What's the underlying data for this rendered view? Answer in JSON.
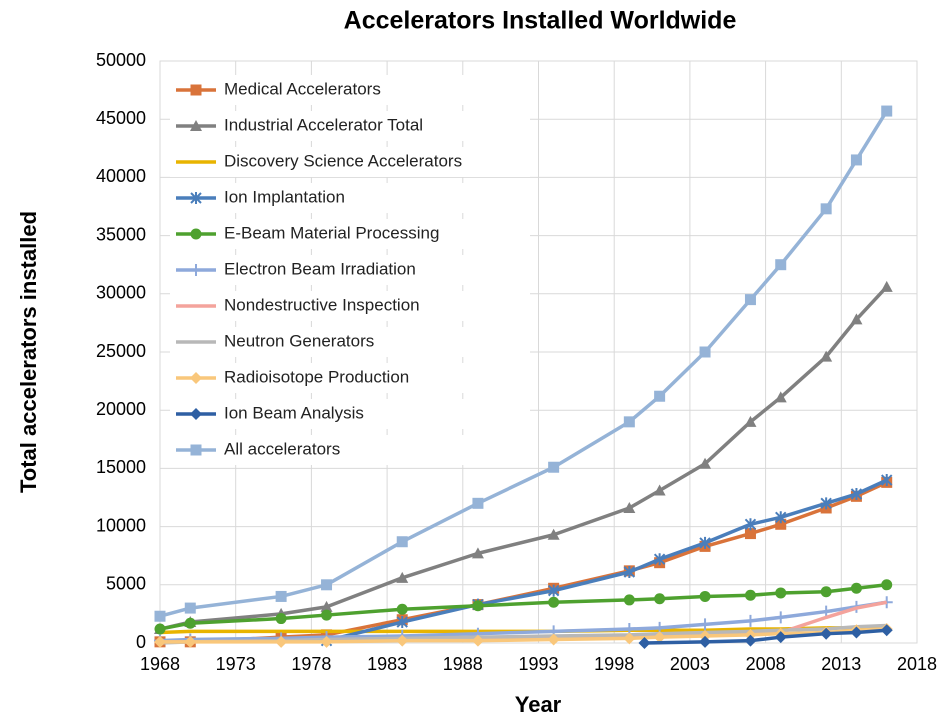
{
  "chart_data": {
    "type": "line",
    "title": "Accelerators Installed Worldwide",
    "xlabel": "Year",
    "ylabel": "Total accelerators installed",
    "xlim": [
      1968,
      2018
    ],
    "xticks": [
      1968,
      1973,
      1978,
      1983,
      1988,
      1993,
      1998,
      2003,
      2008,
      2013,
      2018
    ],
    "ylim": [
      0,
      50000
    ],
    "yticks": [
      0,
      5000,
      10000,
      15000,
      20000,
      25000,
      30000,
      35000,
      40000,
      45000,
      50000
    ],
    "grid": true,
    "legend": "upper left",
    "series": [
      {
        "name": "Medical Accelerators",
        "color": "#d9733a",
        "marker": "square",
        "x": [
          1968,
          1970,
          1976,
          1979,
          1984,
          1989,
          1994,
          1999,
          2001,
          2004,
          2007,
          2009,
          2012,
          2014,
          2016
        ],
        "values": [
          100,
          100,
          500,
          700,
          2000,
          3300,
          4700,
          6200,
          6900,
          8300,
          9400,
          10200,
          11600,
          12600,
          13800
        ]
      },
      {
        "name": "Industrial Accelerator Total",
        "color": "#808080",
        "marker": "triangle",
        "x": [
          1968,
          1970,
          1976,
          1979,
          1984,
          1989,
          1994,
          1999,
          2001,
          2004,
          2007,
          2009,
          2012,
          2014,
          2016
        ],
        "values": [
          1200,
          1800,
          2500,
          3100,
          5600,
          7700,
          9300,
          11600,
          13100,
          15400,
          19000,
          21100,
          24600,
          27800,
          30600
        ]
      },
      {
        "name": "Discovery Science Accelerators",
        "color": "#e8b400",
        "marker": "none",
        "x": [
          1968,
          1970,
          1976,
          1979,
          1984,
          1989,
          1994,
          1999,
          2001,
          2004,
          2007,
          2009,
          2012,
          2014,
          2016
        ],
        "values": [
          900,
          1000,
          1000,
          1000,
          1000,
          1000,
          1000,
          1100,
          1100,
          1100,
          1200,
          1200,
          1300,
          1300,
          1400
        ]
      },
      {
        "name": "Ion Implantation",
        "color": "#4a7ebb",
        "marker": "star",
        "x": [
          1979,
          1984,
          1989,
          1994,
          1999,
          2001,
          2004,
          2007,
          2009,
          2012,
          2014,
          2016
        ],
        "values": [
          200,
          1800,
          3300,
          4500,
          6100,
          7200,
          8600,
          10200,
          10800,
          12000,
          12800,
          14000
        ]
      },
      {
        "name": "E-Beam Material Processing",
        "color": "#4ea12f",
        "marker": "circle",
        "x": [
          1968,
          1970,
          1976,
          1979,
          1984,
          1989,
          1994,
          1999,
          2001,
          2004,
          2007,
          2009,
          2012,
          2014,
          2016
        ],
        "values": [
          1200,
          1700,
          2100,
          2400,
          2900,
          3200,
          3500,
          3700,
          3800,
          4000,
          4100,
          4300,
          4400,
          4700,
          5000
        ]
      },
      {
        "name": "Electron Beam Irradiation",
        "color": "#8ea9db",
        "marker": "plus",
        "x": [
          1968,
          1970,
          1976,
          1979,
          1984,
          1989,
          1994,
          1999,
          2001,
          2004,
          2007,
          2009,
          2012,
          2014,
          2016
        ],
        "values": [
          200,
          300,
          400,
          500,
          600,
          800,
          1000,
          1200,
          1300,
          1600,
          1900,
          2200,
          2700,
          3100,
          3500
        ]
      },
      {
        "name": "Nondestructive Inspection",
        "color": "#f4a39c",
        "marker": "none",
        "x": [
          1968,
          1970,
          1976,
          1979,
          1984,
          1989,
          1994,
          1999,
          2001,
          2004,
          2007,
          2009,
          2012,
          2014,
          2016
        ],
        "values": [
          100,
          100,
          200,
          200,
          300,
          400,
          500,
          600,
          700,
          800,
          900,
          900,
          2200,
          3000,
          3500
        ]
      },
      {
        "name": "Neutron Generators",
        "color": "#b8b8b8",
        "marker": "none",
        "x": [
          1968,
          1970,
          1976,
          1979,
          1984,
          1989,
          1994,
          1999,
          2001,
          2004,
          2007,
          2009,
          2012,
          2014,
          2016
        ],
        "values": [
          0,
          100,
          200,
          300,
          400,
          500,
          600,
          700,
          800,
          900,
          1000,
          1100,
          1200,
          1400,
          1500
        ]
      },
      {
        "name": "Radioisotope Production",
        "color": "#f9c77b",
        "marker": "diamond",
        "x": [
          1968,
          1970,
          1976,
          1979,
          1984,
          1989,
          1994,
          1999,
          2001,
          2004,
          2007,
          2009,
          2012,
          2014,
          2016
        ],
        "values": [
          100,
          100,
          100,
          100,
          200,
          200,
          300,
          400,
          500,
          600,
          700,
          800,
          900,
          1100,
          1200
        ]
      },
      {
        "name": "Ion Beam Analysis",
        "color": "#2e5fa3",
        "marker": "diamond",
        "x": [
          2000,
          2004,
          2007,
          2009,
          2012,
          2014,
          2016
        ],
        "values": [
          0,
          100,
          200,
          500,
          800,
          900,
          1100
        ]
      },
      {
        "name": "All accelerators",
        "color": "#95b3d7",
        "marker": "square",
        "x": [
          1968,
          1970,
          1976,
          1979,
          1984,
          1989,
          1994,
          1999,
          2001,
          2004,
          2007,
          2009,
          2012,
          2014,
          2016
        ],
        "values": [
          2300,
          3000,
          4000,
          5000,
          8700,
          12000,
          15100,
          19000,
          21200,
          25000,
          29500,
          32500,
          37300,
          41500,
          45700
        ]
      }
    ]
  }
}
